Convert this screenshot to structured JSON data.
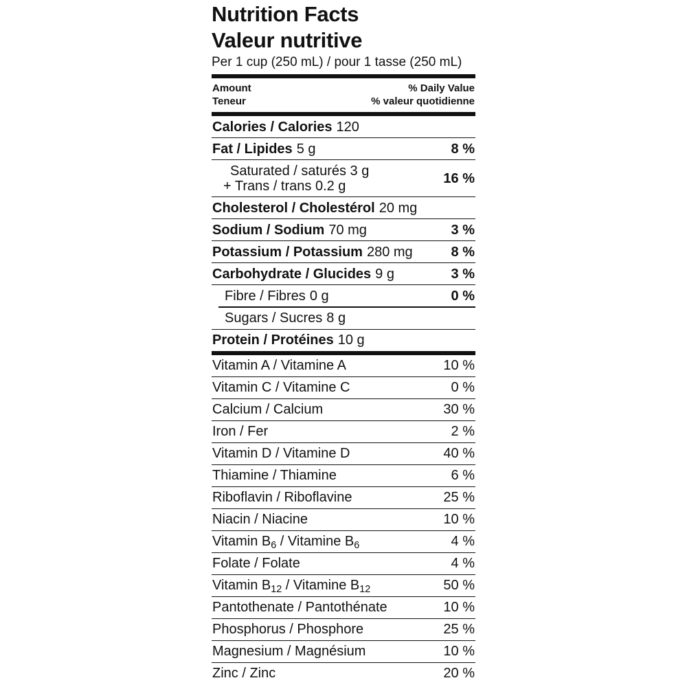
{
  "label": {
    "title_en": "Nutrition Facts",
    "title_fr": "Valeur nutritive",
    "serving": "Per 1 cup (250 mL) / pour 1 tasse (250 mL)",
    "columns": {
      "amount_en": "Amount",
      "amount_fr": "Teneur",
      "daily_value_en": "% Daily Value",
      "daily_value_fr": "% valeur quotidienne"
    },
    "macros": {
      "calories": {
        "name": "Calories / Calories",
        "amount": "120",
        "dv": ""
      },
      "fat": {
        "name": "Fat / Lipides",
        "amount": "5 g",
        "dv": "8 %"
      },
      "saturated": {
        "line1": "Saturated / saturés 3 g",
        "line2": "+ Trans / trans 0.2 g",
        "dv": "16 %"
      },
      "cholesterol": {
        "name": "Cholesterol / Cholestérol",
        "amount": "20 mg",
        "dv": ""
      },
      "sodium": {
        "name": "Sodium / Sodium",
        "amount": "70 mg",
        "dv": "3 %"
      },
      "potassium": {
        "name": "Potassium / Potassium",
        "amount": "280 mg",
        "dv": "8 %"
      },
      "carbohydrate": {
        "name": "Carbohydrate / Glucides",
        "amount": "9 g",
        "dv": "3 %"
      },
      "fibre": {
        "name": "Fibre / Fibres",
        "amount": "0 g",
        "dv": "0 %"
      },
      "sugars": {
        "name": "Sugars / Sucres",
        "amount": "8 g",
        "dv": ""
      },
      "protein": {
        "name": "Protein / Protéines",
        "amount": "10 g",
        "dv": ""
      }
    },
    "micronutrients": [
      {
        "name": "Vitamin A / Vitamine A",
        "dv": "10 %"
      },
      {
        "name": "Vitamin C / Vitamine C",
        "dv": "0 %"
      },
      {
        "name": "Calcium / Calcium",
        "dv": "30 %"
      },
      {
        "name": "Iron / Fer",
        "dv": "2 %"
      },
      {
        "name": "Vitamin D / Vitamine D",
        "dv": "40 %"
      },
      {
        "name": "Thiamine / Thiamine",
        "dv": "6 %"
      },
      {
        "name": "Riboflavin / Riboflavine",
        "dv": "25 %"
      },
      {
        "name": "Niacin / Niacine",
        "dv": "10 %"
      },
      {
        "name_parts": [
          "Vitamin B",
          "6",
          " / Vitamine B",
          "6"
        ],
        "dv": "4 %"
      },
      {
        "name": "Folate / Folate",
        "dv": "4 %"
      },
      {
        "name_parts": [
          "Vitamin B",
          "12",
          " / Vitamine B",
          "12"
        ],
        "dv": "50 %"
      },
      {
        "name": "Pantothenate / Pantothénate",
        "dv": "10 %"
      },
      {
        "name": "Phosphorus / Phosphore",
        "dv": "25 %"
      },
      {
        "name": "Magnesium / Magnésium",
        "dv": "10 %"
      },
      {
        "name": "Zinc / Zinc",
        "dv": "20 %"
      }
    ],
    "colors": {
      "ink": "#111111",
      "background": "#ffffff"
    }
  }
}
